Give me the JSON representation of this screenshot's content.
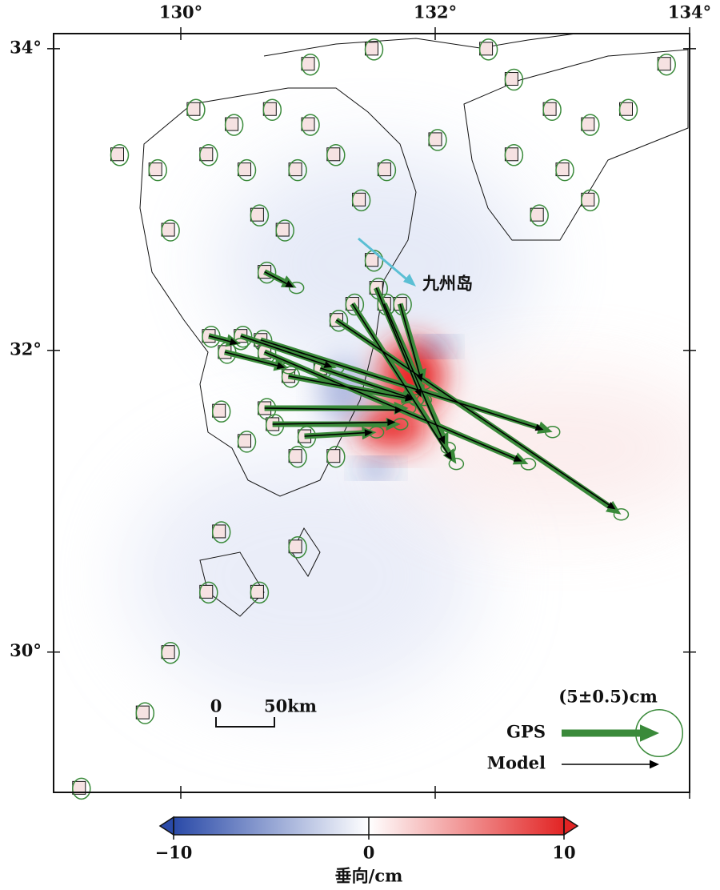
{
  "chart_data": {
    "type": "vector-map",
    "xlim": [
      129,
      134
    ],
    "ylim": [
      29.07,
      34.1
    ],
    "xticks": [
      {
        "value": 130,
        "label": "130°"
      },
      {
        "value": 132,
        "label": "132°"
      },
      {
        "value": 134,
        "label": "134°"
      }
    ],
    "yticks": [
      {
        "value": 30,
        "label": "30°"
      },
      {
        "value": 32,
        "label": "32°"
      },
      {
        "value": 34,
        "label": "34°"
      }
    ],
    "gps_color": "#3a8a3a",
    "model_color": "#000000",
    "vectors": {
      "lon": [
        130.627,
        130.658,
        131.223,
        131.348,
        131.599,
        130.658,
        130.721,
        130.846,
        131.097,
        130.972,
        131.536,
        131.724,
        130.47,
        130.345,
        130.22,
        130.658
      ],
      "lat": [
        32.069,
        31.989,
        32.202,
        32.309,
        32.309,
        31.617,
        31.511,
        31.83,
        31.883,
        31.431,
        32.415,
        32.309,
        32.096,
        31.989,
        32.096,
        32.521
      ],
      "gps_east": [
        14.96,
        13.52,
        14.59,
        5.33,
        3.28,
        7.38,
        6.56,
        6.56,
        4.92,
        3.69,
        2.46,
        1.23,
        4.92,
        3.28,
        1.64,
        1.64
      ],
      "gps_north": [
        -4.71,
        -5.74,
        -9.96,
        -8.2,
        -7.38,
        0,
        0,
        -1.23,
        -1.64,
        0.2,
        -5.74,
        -4.1,
        -1.64,
        -0.82,
        -0.41,
        -0.82
      ],
      "model_east": [
        14.5,
        13.2,
        14.3,
        5.1,
        3.1,
        7.1,
        6.3,
        6.4,
        4.8,
        3.5,
        2.3,
        1.1,
        4.7,
        3.1,
        1.5,
        1.5
      ],
      "model_north": [
        -4.6,
        -5.6,
        -9.7,
        -8.0,
        -7.2,
        -0.1,
        0.1,
        -1.2,
        -1.6,
        0.2,
        -5.6,
        -4.0,
        -1.6,
        -0.8,
        -0.4,
        -0.8
      ]
    },
    "stations": {
      "lon": [
        130.1,
        130.4,
        130.7,
        131.0,
        130.9,
        130.5,
        130.2,
        131.2,
        131.6,
        131.4,
        130.6,
        129.8,
        129.9,
        130.8,
        131.5,
        130.3,
        130.5,
        130.9,
        131.2,
        130.3,
        130.2,
        130.6,
        130.9,
        129.9,
        129.7,
        129.2,
        132.6,
        132.9,
        133.2,
        133.5,
        133.8,
        133.0,
        132.6,
        132.8,
        133.2,
        132.4,
        131.5,
        131.0,
        132.0,
        129.5
      ],
      "lat": [
        33.6,
        33.5,
        33.6,
        33.5,
        33.2,
        33.2,
        33.3,
        33.3,
        33.2,
        33.0,
        32.9,
        33.2,
        32.8,
        32.8,
        32.6,
        31.6,
        31.4,
        31.3,
        31.3,
        30.8,
        30.4,
        30.4,
        30.7,
        30.0,
        29.6,
        29.1,
        33.8,
        33.6,
        33.5,
        33.6,
        33.9,
        33.2,
        33.3,
        32.9,
        33.0,
        34.0,
        34.0,
        33.9,
        33.4,
        33.3
      ]
    },
    "annotation": "九州岛",
    "scale_bar": {
      "labels": [
        "0",
        "50km"
      ]
    },
    "legend": {
      "title": "(5±0.5)cm",
      "length": 5,
      "error": 0.5,
      "gps_label": "GPS",
      "model_label": "Model"
    },
    "colorbar": {
      "lim": [
        -10,
        10
      ],
      "ticks": [
        {
          "value": -10,
          "label": "−10"
        },
        0,
        10
      ],
      "label": "垂向/cm"
    }
  }
}
